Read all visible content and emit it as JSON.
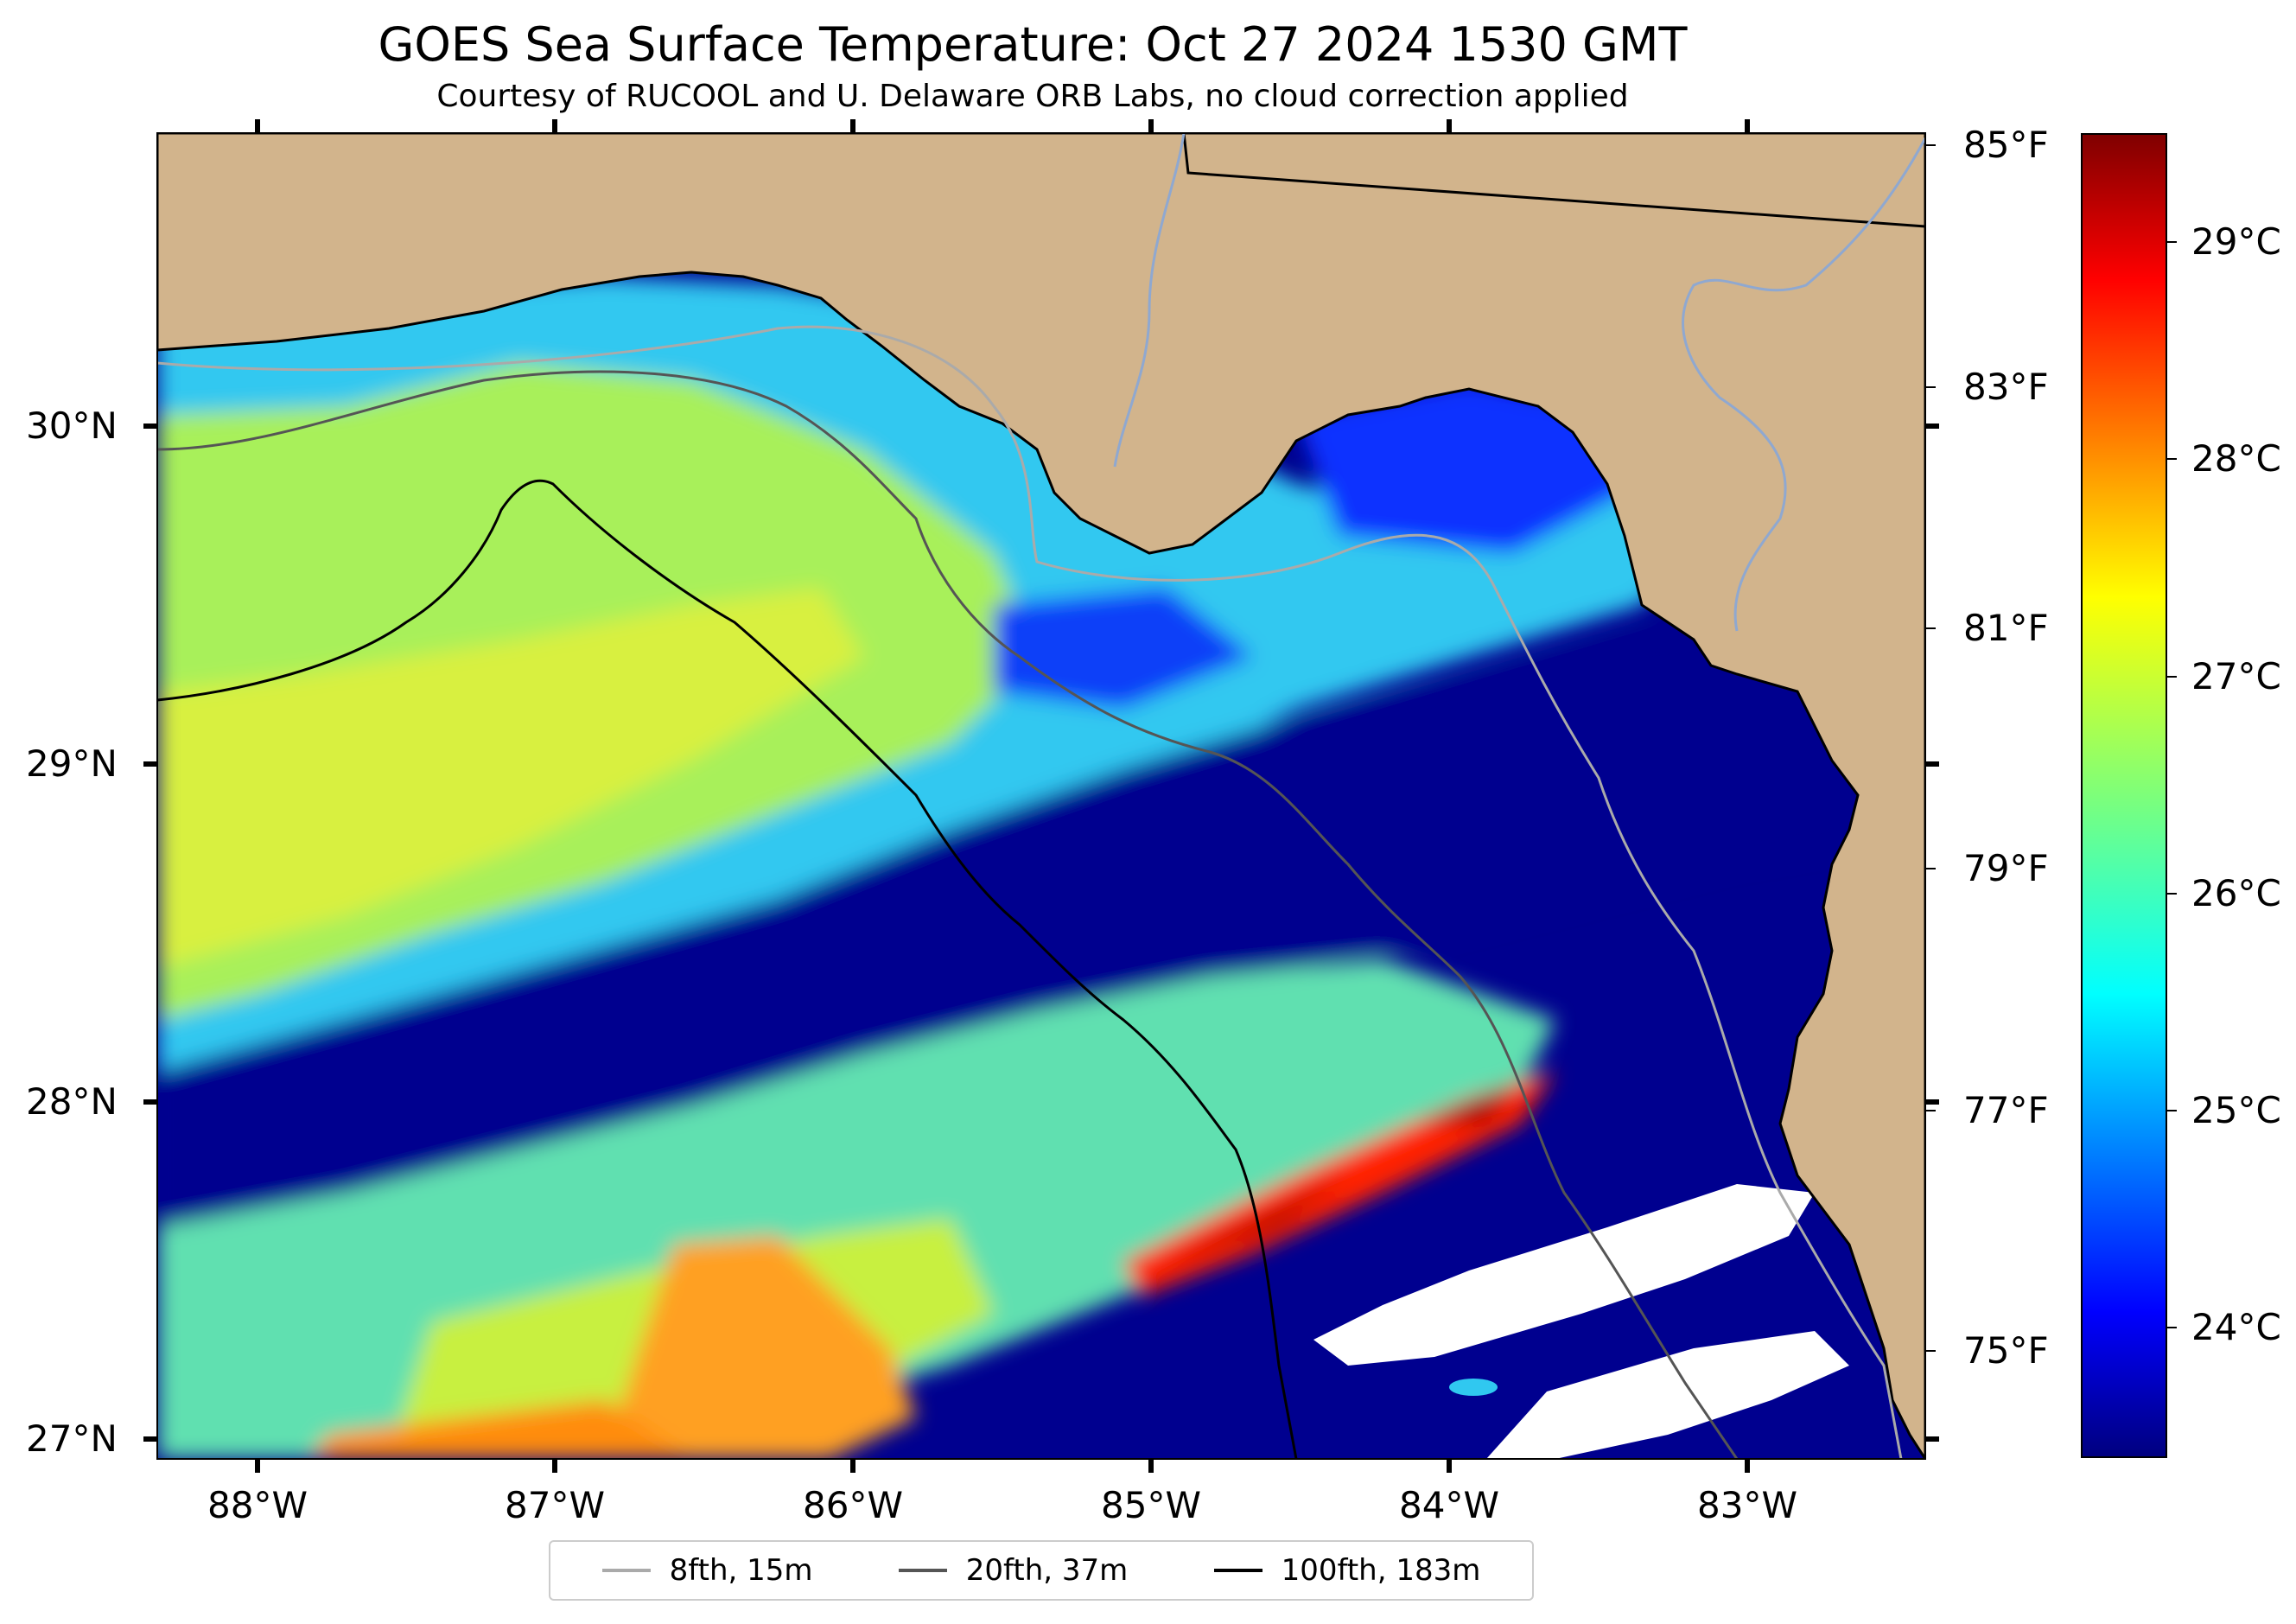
{
  "title": "GOES Sea Surface Temperature: Oct 27 2024 1530 GMT",
  "subtitle": "Courtesy of RUCOOL and U. Delaware ORB Labs, no cloud correction applied",
  "map": {
    "longitude_ticks": [
      "88°W",
      "87°W",
      "86°W",
      "85°W",
      "84°W",
      "83°W"
    ],
    "latitude_ticks": [
      "30°N",
      "29°N",
      "28°N",
      "27°N"
    ],
    "land_color": "#d2b48c",
    "cloud_color": "#ffffff"
  },
  "colorbar": {
    "fahrenheit_ticks": [
      "85°F",
      "83°F",
      "81°F",
      "79°F",
      "77°F",
      "75°F"
    ],
    "celsius_ticks": [
      "29°C",
      "28°C",
      "27°C",
      "26°C",
      "25°C",
      "24°C"
    ],
    "colormap": "jet",
    "range_celsius": [
      23.4,
      29.5
    ]
  },
  "legend": {
    "items": [
      {
        "label": "8fth, 15m",
        "color": "#aaaaaa"
      },
      {
        "label": "20fth, 37m",
        "color": "#555555"
      },
      {
        "label": "100fth, 183m",
        "color": "#000000"
      }
    ]
  }
}
